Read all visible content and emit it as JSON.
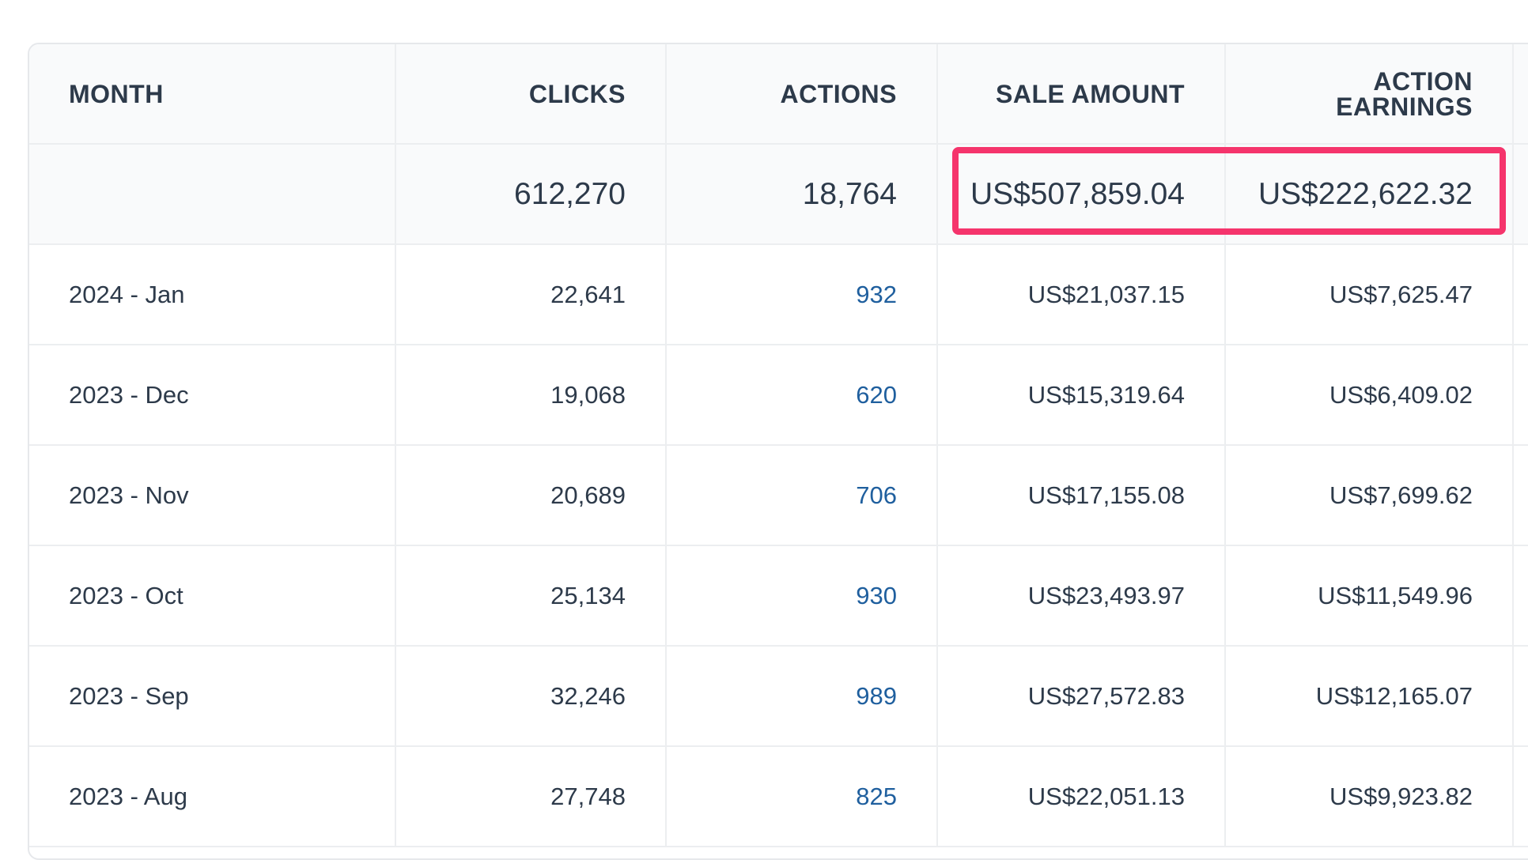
{
  "table": {
    "headers": {
      "month": "MONTH",
      "clicks": "CLICKS",
      "actions": "ACTIONS",
      "sale_amount": "SALE AMOUNT",
      "action_earnings": "ACTION EARNINGS"
    },
    "totals": {
      "month": "",
      "clicks": "612,270",
      "actions": "18,764",
      "sale_amount": "US$507,859.04",
      "action_earnings": "US$222,622.32"
    },
    "rows": [
      {
        "month": "2024 - Jan",
        "clicks": "22,641",
        "actions": "932",
        "sale_amount": "US$21,037.15",
        "action_earnings": "US$7,625.47"
      },
      {
        "month": "2023 - Dec",
        "clicks": "19,068",
        "actions": "620",
        "sale_amount": "US$15,319.64",
        "action_earnings": "US$6,409.02"
      },
      {
        "month": "2023 - Nov",
        "clicks": "20,689",
        "actions": "706",
        "sale_amount": "US$17,155.08",
        "action_earnings": "US$7,699.62"
      },
      {
        "month": "2023 - Oct",
        "clicks": "25,134",
        "actions": "930",
        "sale_amount": "US$23,493.97",
        "action_earnings": "US$11,549.96"
      },
      {
        "month": "2023 - Sep",
        "clicks": "32,246",
        "actions": "989",
        "sale_amount": "US$27,572.83",
        "action_earnings": "US$12,165.07"
      },
      {
        "month": "2023 - Aug",
        "clicks": "27,748",
        "actions": "825",
        "sale_amount": "US$22,051.13",
        "action_earnings": "US$9,923.82"
      }
    ]
  },
  "colors": {
    "text": "#2d3a4a",
    "link": "#1f5f9e",
    "highlight": "#f5346c",
    "header_bg": "#f9fafb",
    "border": "#eceef0"
  }
}
